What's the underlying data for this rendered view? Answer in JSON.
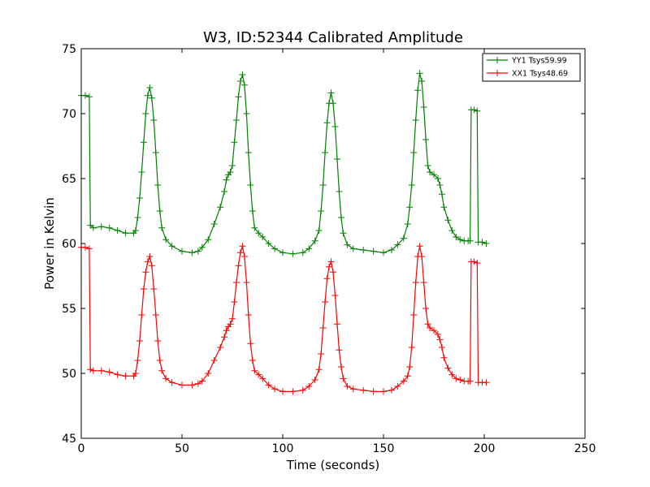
{
  "chart_data": {
    "type": "line",
    "title": "W3, ID:52344 Calibrated Amplitude",
    "xlabel": "Time (seconds)",
    "ylabel": "Power in Kelvin",
    "xlim": [
      0,
      250
    ],
    "ylim": [
      45,
      75
    ],
    "x_ticks": [
      0,
      50,
      100,
      150,
      200,
      250
    ],
    "y_ticks": [
      45,
      50,
      55,
      60,
      65,
      70,
      75
    ],
    "grid": false,
    "legend_position": "top-right",
    "marker": "+",
    "series": [
      {
        "name": "YY1 Tsys59.99",
        "color": "#008000",
        "points": [
          [
            0,
            71.4
          ],
          [
            2,
            71.4
          ],
          [
            4,
            71.3
          ],
          [
            4.5,
            61.4
          ],
          [
            6,
            61.2
          ],
          [
            10,
            61.3
          ],
          [
            14,
            61.2
          ],
          [
            18,
            61.0
          ],
          [
            22,
            60.8
          ],
          [
            26,
            60.8
          ],
          [
            27,
            61.0
          ],
          [
            28,
            62.0
          ],
          [
            29,
            63.5
          ],
          [
            30,
            65.5
          ],
          [
            31,
            67.8
          ],
          [
            32,
            70.0
          ],
          [
            33,
            71.4
          ],
          [
            34,
            72.0
          ],
          [
            35,
            71.2
          ],
          [
            36,
            69.5
          ],
          [
            37,
            67.0
          ],
          [
            38,
            64.5
          ],
          [
            39,
            62.5
          ],
          [
            40,
            61.2
          ],
          [
            42,
            60.3
          ],
          [
            45,
            59.8
          ],
          [
            50,
            59.4
          ],
          [
            55,
            59.3
          ],
          [
            58,
            59.4
          ],
          [
            60,
            59.7
          ],
          [
            63,
            60.3
          ],
          [
            66,
            61.5
          ],
          [
            69,
            62.8
          ],
          [
            71,
            64.0
          ],
          [
            72,
            64.9
          ],
          [
            73,
            65.3
          ],
          [
            74,
            65.5
          ],
          [
            75,
            66.0
          ],
          [
            76,
            67.8
          ],
          [
            77,
            69.5
          ],
          [
            78,
            71.3
          ],
          [
            79,
            72.5
          ],
          [
            80,
            73.0
          ],
          [
            81,
            72.2
          ],
          [
            82,
            70.0
          ],
          [
            83,
            67.0
          ],
          [
            84,
            64.5
          ],
          [
            85,
            62.5
          ],
          [
            86,
            61.2
          ],
          [
            88,
            60.8
          ],
          [
            90,
            60.5
          ],
          [
            93,
            60.0
          ],
          [
            96,
            59.6
          ],
          [
            100,
            59.3
          ],
          [
            105,
            59.2
          ],
          [
            110,
            59.3
          ],
          [
            113,
            59.6
          ],
          [
            116,
            60.2
          ],
          [
            118,
            61.0
          ],
          [
            119,
            62.5
          ],
          [
            120,
            64.5
          ],
          [
            121,
            67.0
          ],
          [
            122,
            69.3
          ],
          [
            123,
            70.8
          ],
          [
            124,
            71.6
          ],
          [
            125,
            70.8
          ],
          [
            126,
            69.0
          ],
          [
            127,
            66.5
          ],
          [
            128,
            64.0
          ],
          [
            129,
            62.0
          ],
          [
            130,
            60.8
          ],
          [
            132,
            59.9
          ],
          [
            135,
            59.6
          ],
          [
            140,
            59.5
          ],
          [
            145,
            59.4
          ],
          [
            150,
            59.3
          ],
          [
            154,
            59.5
          ],
          [
            157,
            59.9
          ],
          [
            160,
            60.4
          ],
          [
            162,
            61.5
          ],
          [
            163,
            62.8
          ],
          [
            164,
            64.5
          ],
          [
            165,
            67.0
          ],
          [
            166,
            69.5
          ],
          [
            167,
            71.8
          ],
          [
            168,
            73.1
          ],
          [
            169,
            72.5
          ],
          [
            170,
            70.5
          ],
          [
            171,
            68.0
          ],
          [
            172,
            66.0
          ],
          [
            173,
            65.5
          ],
          [
            175,
            65.3
          ],
          [
            177,
            65.0
          ],
          [
            178,
            64.5
          ],
          [
            179,
            63.8
          ],
          [
            180,
            62.8
          ],
          [
            182,
            61.8
          ],
          [
            184,
            61.0
          ],
          [
            186,
            60.5
          ],
          [
            188,
            60.3
          ],
          [
            190,
            60.2
          ],
          [
            192,
            60.2
          ],
          [
            193,
            60.2
          ],
          [
            193.5,
            70.3
          ],
          [
            195,
            70.3
          ],
          [
            196.5,
            70.2
          ],
          [
            197,
            60.1
          ],
          [
            199,
            60.1
          ],
          [
            201,
            60.0
          ]
        ]
      },
      {
        "name": "XX1 Tsys48.69",
        "color": "#ff0000",
        "points": [
          [
            0,
            59.7
          ],
          [
            2,
            59.7
          ],
          [
            4,
            59.6
          ],
          [
            4.5,
            50.3
          ],
          [
            6,
            50.2
          ],
          [
            10,
            50.2
          ],
          [
            14,
            50.1
          ],
          [
            18,
            49.9
          ],
          [
            22,
            49.8
          ],
          [
            26,
            49.8
          ],
          [
            27,
            50.0
          ],
          [
            28,
            51.0
          ],
          [
            29,
            52.5
          ],
          [
            30,
            54.5
          ],
          [
            31,
            56.5
          ],
          [
            32,
            57.8
          ],
          [
            33,
            58.6
          ],
          [
            34,
            59.0
          ],
          [
            35,
            58.3
          ],
          [
            36,
            56.5
          ],
          [
            37,
            54.5
          ],
          [
            38,
            52.5
          ],
          [
            39,
            51.0
          ],
          [
            40,
            50.2
          ],
          [
            42,
            49.6
          ],
          [
            45,
            49.3
          ],
          [
            50,
            49.1
          ],
          [
            55,
            49.1
          ],
          [
            58,
            49.2
          ],
          [
            60,
            49.4
          ],
          [
            63,
            50.0
          ],
          [
            66,
            51.0
          ],
          [
            69,
            52.0
          ],
          [
            71,
            52.8
          ],
          [
            72,
            53.3
          ],
          [
            73,
            53.6
          ],
          [
            74,
            53.8
          ],
          [
            75,
            54.2
          ],
          [
            76,
            55.5
          ],
          [
            77,
            57.0
          ],
          [
            78,
            58.3
          ],
          [
            79,
            59.3
          ],
          [
            80,
            59.8
          ],
          [
            81,
            59.0
          ],
          [
            82,
            57.0
          ],
          [
            83,
            54.5
          ],
          [
            84,
            52.3
          ],
          [
            85,
            51.0
          ],
          [
            86,
            50.2
          ],
          [
            88,
            49.9
          ],
          [
            90,
            49.6
          ],
          [
            93,
            49.1
          ],
          [
            96,
            48.8
          ],
          [
            100,
            48.6
          ],
          [
            105,
            48.6
          ],
          [
            110,
            48.7
          ],
          [
            113,
            49.0
          ],
          [
            116,
            49.5
          ],
          [
            118,
            50.3
          ],
          [
            119,
            51.5
          ],
          [
            120,
            53.5
          ],
          [
            121,
            55.5
          ],
          [
            122,
            57.3
          ],
          [
            123,
            58.2
          ],
          [
            124,
            58.6
          ],
          [
            125,
            57.8
          ],
          [
            126,
            56.0
          ],
          [
            127,
            53.8
          ],
          [
            128,
            51.8
          ],
          [
            129,
            50.5
          ],
          [
            130,
            49.6
          ],
          [
            132,
            49.0
          ],
          [
            135,
            48.8
          ],
          [
            140,
            48.7
          ],
          [
            145,
            48.6
          ],
          [
            150,
            48.6
          ],
          [
            154,
            48.7
          ],
          [
            157,
            49.0
          ],
          [
            160,
            49.4
          ],
          [
            162,
            49.8
          ],
          [
            163,
            50.5
          ],
          [
            164,
            52.0
          ],
          [
            165,
            54.5
          ],
          [
            166,
            57.0
          ],
          [
            167,
            59.0
          ],
          [
            168,
            59.8
          ],
          [
            169,
            59.0
          ],
          [
            170,
            57.0
          ],
          [
            171,
            55.0
          ],
          [
            172,
            53.8
          ],
          [
            173,
            53.5
          ],
          [
            175,
            53.3
          ],
          [
            177,
            53.0
          ],
          [
            178,
            52.6
          ],
          [
            179,
            52.0
          ],
          [
            180,
            51.2
          ],
          [
            182,
            50.4
          ],
          [
            184,
            49.9
          ],
          [
            186,
            49.6
          ],
          [
            188,
            49.5
          ],
          [
            190,
            49.4
          ],
          [
            192,
            49.4
          ],
          [
            193,
            49.4
          ],
          [
            193.5,
            58.6
          ],
          [
            195,
            58.6
          ],
          [
            196.5,
            58.5
          ],
          [
            197,
            49.3
          ],
          [
            199,
            49.3
          ],
          [
            201,
            49.3
          ]
        ]
      }
    ]
  }
}
